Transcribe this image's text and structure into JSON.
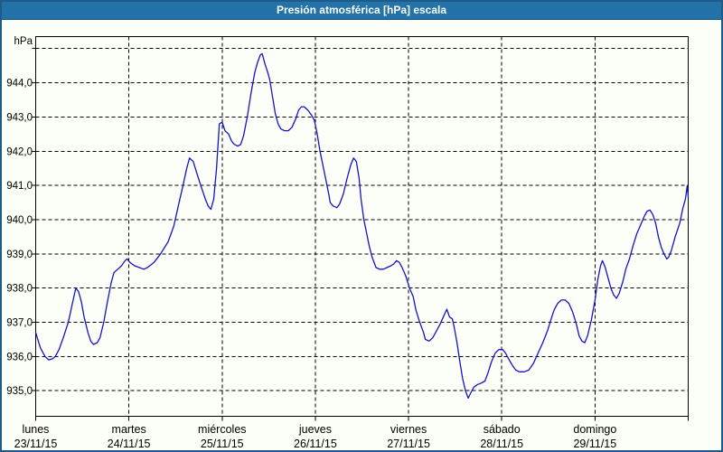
{
  "window": {
    "title": "Presión atmosférica [hPa] escala",
    "colors": {
      "title_bar": "#2373a9",
      "title_text": "#ffffff",
      "border": "#1d5c8a",
      "background": "#fcfef8",
      "grid": "#000000",
      "text": "#000000"
    }
  },
  "chart_data": {
    "type": "line",
    "title": "Presión atmosférica [hPa] escala",
    "ylabel": "hPa",
    "xlabel": "",
    "legend_position": "none",
    "grid": "dashed",
    "line_color": "#1414c8",
    "ylim": [
      934.25,
      945.35
    ],
    "xlim_days": [
      0,
      7
    ],
    "y_gridline_values": [
      935,
      936,
      937,
      938,
      939,
      940,
      941,
      942,
      943,
      944,
      945
    ],
    "y_axis": {
      "unit_label": "hPa",
      "ticks": [
        {
          "value": 944,
          "label": "944,0"
        },
        {
          "value": 943,
          "label": "943,0"
        },
        {
          "value": 942,
          "label": "942,0"
        },
        {
          "value": 941,
          "label": "941,0"
        },
        {
          "value": 940,
          "label": "940,0"
        },
        {
          "value": 939,
          "label": "939,0"
        },
        {
          "value": 938,
          "label": "938,0"
        },
        {
          "value": 937,
          "label": "937,0"
        },
        {
          "value": 936,
          "label": "936,0"
        },
        {
          "value": 935,
          "label": "935,0"
        }
      ]
    },
    "x_axis": {
      "span_days": 7,
      "days": [
        {
          "index": 0,
          "weekday": "lunes",
          "date": "23/11/15"
        },
        {
          "index": 1,
          "weekday": "martes",
          "date": "24/11/15"
        },
        {
          "index": 2,
          "weekday": "miércoles",
          "date": "25/11/15"
        },
        {
          "index": 3,
          "weekday": "jueves",
          "date": "26/11/15"
        },
        {
          "index": 4,
          "weekday": "viernes",
          "date": "27/11/15"
        },
        {
          "index": 5,
          "weekday": "sábado",
          "date": "28/11/15"
        },
        {
          "index": 6,
          "weekday": "domingo",
          "date": "29/11/15"
        }
      ]
    },
    "series": [
      {
        "name": "Presión atmosférica",
        "unit": "hPa",
        "points_day_hpa": [
          [
            0.0,
            936.7
          ],
          [
            0.05,
            936.25
          ],
          [
            0.1,
            936.0
          ],
          [
            0.14,
            935.9
          ],
          [
            0.18,
            935.93
          ],
          [
            0.21,
            936.0
          ],
          [
            0.25,
            936.2
          ],
          [
            0.29,
            936.5
          ],
          [
            0.35,
            937.0
          ],
          [
            0.39,
            937.5
          ],
          [
            0.43,
            938.0
          ],
          [
            0.46,
            937.9
          ],
          [
            0.49,
            937.6
          ],
          [
            0.52,
            937.15
          ],
          [
            0.56,
            936.7
          ],
          [
            0.59,
            936.45
          ],
          [
            0.62,
            936.35
          ],
          [
            0.66,
            936.4
          ],
          [
            0.69,
            936.55
          ],
          [
            0.73,
            937.0
          ],
          [
            0.77,
            937.6
          ],
          [
            0.81,
            938.15
          ],
          [
            0.84,
            938.45
          ],
          [
            0.88,
            938.55
          ],
          [
            0.92,
            938.65
          ],
          [
            0.96,
            938.8
          ],
          [
            0.98,
            938.85
          ],
          [
            1.01,
            938.75
          ],
          [
            1.06,
            938.65
          ],
          [
            1.11,
            938.6
          ],
          [
            1.16,
            938.55
          ],
          [
            1.2,
            938.6
          ],
          [
            1.27,
            938.75
          ],
          [
            1.34,
            939.0
          ],
          [
            1.42,
            939.35
          ],
          [
            1.48,
            939.8
          ],
          [
            1.53,
            940.4
          ],
          [
            1.58,
            941.0
          ],
          [
            1.62,
            941.5
          ],
          [
            1.65,
            941.8
          ],
          [
            1.69,
            941.7
          ],
          [
            1.73,
            941.35
          ],
          [
            1.77,
            941.0
          ],
          [
            1.82,
            940.6
          ],
          [
            1.85,
            940.4
          ],
          [
            1.88,
            940.3
          ],
          [
            1.91,
            940.6
          ],
          [
            1.94,
            941.5
          ],
          [
            1.97,
            942.8
          ],
          [
            2.0,
            942.85
          ],
          [
            2.03,
            942.6
          ],
          [
            2.07,
            942.5
          ],
          [
            2.1,
            942.3
          ],
          [
            2.13,
            942.2
          ],
          [
            2.17,
            942.15
          ],
          [
            2.2,
            942.2
          ],
          [
            2.23,
            942.45
          ],
          [
            2.27,
            943.0
          ],
          [
            2.31,
            943.7
          ],
          [
            2.35,
            944.3
          ],
          [
            2.38,
            944.6
          ],
          [
            2.41,
            944.82
          ],
          [
            2.43,
            944.85
          ],
          [
            2.46,
            944.55
          ],
          [
            2.49,
            944.3
          ],
          [
            2.51,
            944.1
          ],
          [
            2.54,
            943.6
          ],
          [
            2.57,
            943.1
          ],
          [
            2.6,
            942.8
          ],
          [
            2.63,
            942.65
          ],
          [
            2.67,
            942.6
          ],
          [
            2.71,
            942.6
          ],
          [
            2.75,
            942.7
          ],
          [
            2.79,
            942.95
          ],
          [
            2.82,
            943.2
          ],
          [
            2.85,
            943.3
          ],
          [
            2.88,
            943.3
          ],
          [
            2.92,
            943.2
          ],
          [
            2.96,
            943.05
          ],
          [
            2.99,
            942.9
          ],
          [
            3.02,
            942.5
          ],
          [
            3.05,
            942.0
          ],
          [
            3.08,
            941.6
          ],
          [
            3.11,
            941.2
          ],
          [
            3.14,
            940.8
          ],
          [
            3.16,
            940.5
          ],
          [
            3.19,
            940.4
          ],
          [
            3.23,
            940.35
          ],
          [
            3.26,
            940.45
          ],
          [
            3.3,
            940.75
          ],
          [
            3.34,
            941.2
          ],
          [
            3.38,
            941.6
          ],
          [
            3.41,
            941.8
          ],
          [
            3.44,
            941.7
          ],
          [
            3.47,
            941.2
          ],
          [
            3.49,
            940.6
          ],
          [
            3.52,
            940.0
          ],
          [
            3.55,
            939.6
          ],
          [
            3.58,
            939.2
          ],
          [
            3.61,
            938.9
          ],
          [
            3.65,
            938.6
          ],
          [
            3.69,
            938.55
          ],
          [
            3.73,
            938.55
          ],
          [
            3.77,
            938.6
          ],
          [
            3.81,
            938.65
          ],
          [
            3.84,
            938.7
          ],
          [
            3.87,
            938.8
          ],
          [
            3.9,
            938.75
          ],
          [
            3.93,
            938.6
          ],
          [
            3.97,
            938.35
          ],
          [
            4.01,
            938.0
          ],
          [
            4.05,
            937.75
          ],
          [
            4.08,
            937.35
          ],
          [
            4.12,
            937.0
          ],
          [
            4.16,
            936.7
          ],
          [
            4.18,
            936.5
          ],
          [
            4.22,
            936.45
          ],
          [
            4.26,
            936.55
          ],
          [
            4.3,
            936.75
          ],
          [
            4.34,
            936.95
          ],
          [
            4.38,
            937.2
          ],
          [
            4.41,
            937.38
          ],
          [
            4.44,
            937.15
          ],
          [
            4.47,
            937.1
          ],
          [
            4.49,
            936.85
          ],
          [
            4.52,
            936.4
          ],
          [
            4.55,
            935.85
          ],
          [
            4.58,
            935.35
          ],
          [
            4.61,
            935.0
          ],
          [
            4.64,
            934.78
          ],
          [
            4.67,
            934.95
          ],
          [
            4.7,
            935.1
          ],
          [
            4.74,
            935.18
          ],
          [
            4.78,
            935.22
          ],
          [
            4.82,
            935.28
          ],
          [
            4.85,
            935.5
          ],
          [
            4.89,
            935.85
          ],
          [
            4.93,
            936.1
          ],
          [
            4.97,
            936.2
          ],
          [
            5.01,
            936.2
          ],
          [
            5.04,
            936.1
          ],
          [
            5.07,
            935.95
          ],
          [
            5.11,
            935.75
          ],
          [
            5.15,
            935.6
          ],
          [
            5.19,
            935.55
          ],
          [
            5.24,
            935.55
          ],
          [
            5.29,
            935.6
          ],
          [
            5.34,
            935.8
          ],
          [
            5.39,
            936.1
          ],
          [
            5.44,
            936.4
          ],
          [
            5.49,
            936.75
          ],
          [
            5.53,
            937.1
          ],
          [
            5.56,
            937.35
          ],
          [
            5.6,
            937.55
          ],
          [
            5.64,
            937.65
          ],
          [
            5.68,
            937.65
          ],
          [
            5.72,
            937.55
          ],
          [
            5.76,
            937.3
          ],
          [
            5.8,
            936.95
          ],
          [
            5.83,
            936.6
          ],
          [
            5.86,
            936.45
          ],
          [
            5.89,
            936.4
          ],
          [
            5.92,
            936.6
          ],
          [
            5.96,
            937.05
          ],
          [
            6.0,
            937.65
          ],
          [
            6.03,
            938.25
          ],
          [
            6.06,
            938.65
          ],
          [
            6.08,
            938.8
          ],
          [
            6.11,
            938.6
          ],
          [
            6.14,
            938.3
          ],
          [
            6.17,
            938.0
          ],
          [
            6.2,
            937.8
          ],
          [
            6.23,
            937.7
          ],
          [
            6.26,
            937.85
          ],
          [
            6.3,
            938.2
          ],
          [
            6.33,
            938.55
          ],
          [
            6.37,
            938.85
          ],
          [
            6.41,
            939.25
          ],
          [
            6.45,
            939.6
          ],
          [
            6.49,
            939.85
          ],
          [
            6.53,
            940.1
          ],
          [
            6.56,
            940.25
          ],
          [
            6.59,
            940.28
          ],
          [
            6.62,
            940.15
          ],
          [
            6.65,
            939.9
          ],
          [
            6.68,
            939.5
          ],
          [
            6.71,
            939.2
          ],
          [
            6.74,
            939.0
          ],
          [
            6.77,
            938.85
          ],
          [
            6.79,
            938.9
          ],
          [
            6.82,
            939.1
          ],
          [
            6.86,
            939.5
          ],
          [
            6.91,
            939.9
          ],
          [
            6.94,
            940.3
          ],
          [
            6.97,
            940.6
          ],
          [
            6.99,
            941.0
          ],
          [
            7.0,
            940.65
          ]
        ]
      }
    ]
  }
}
